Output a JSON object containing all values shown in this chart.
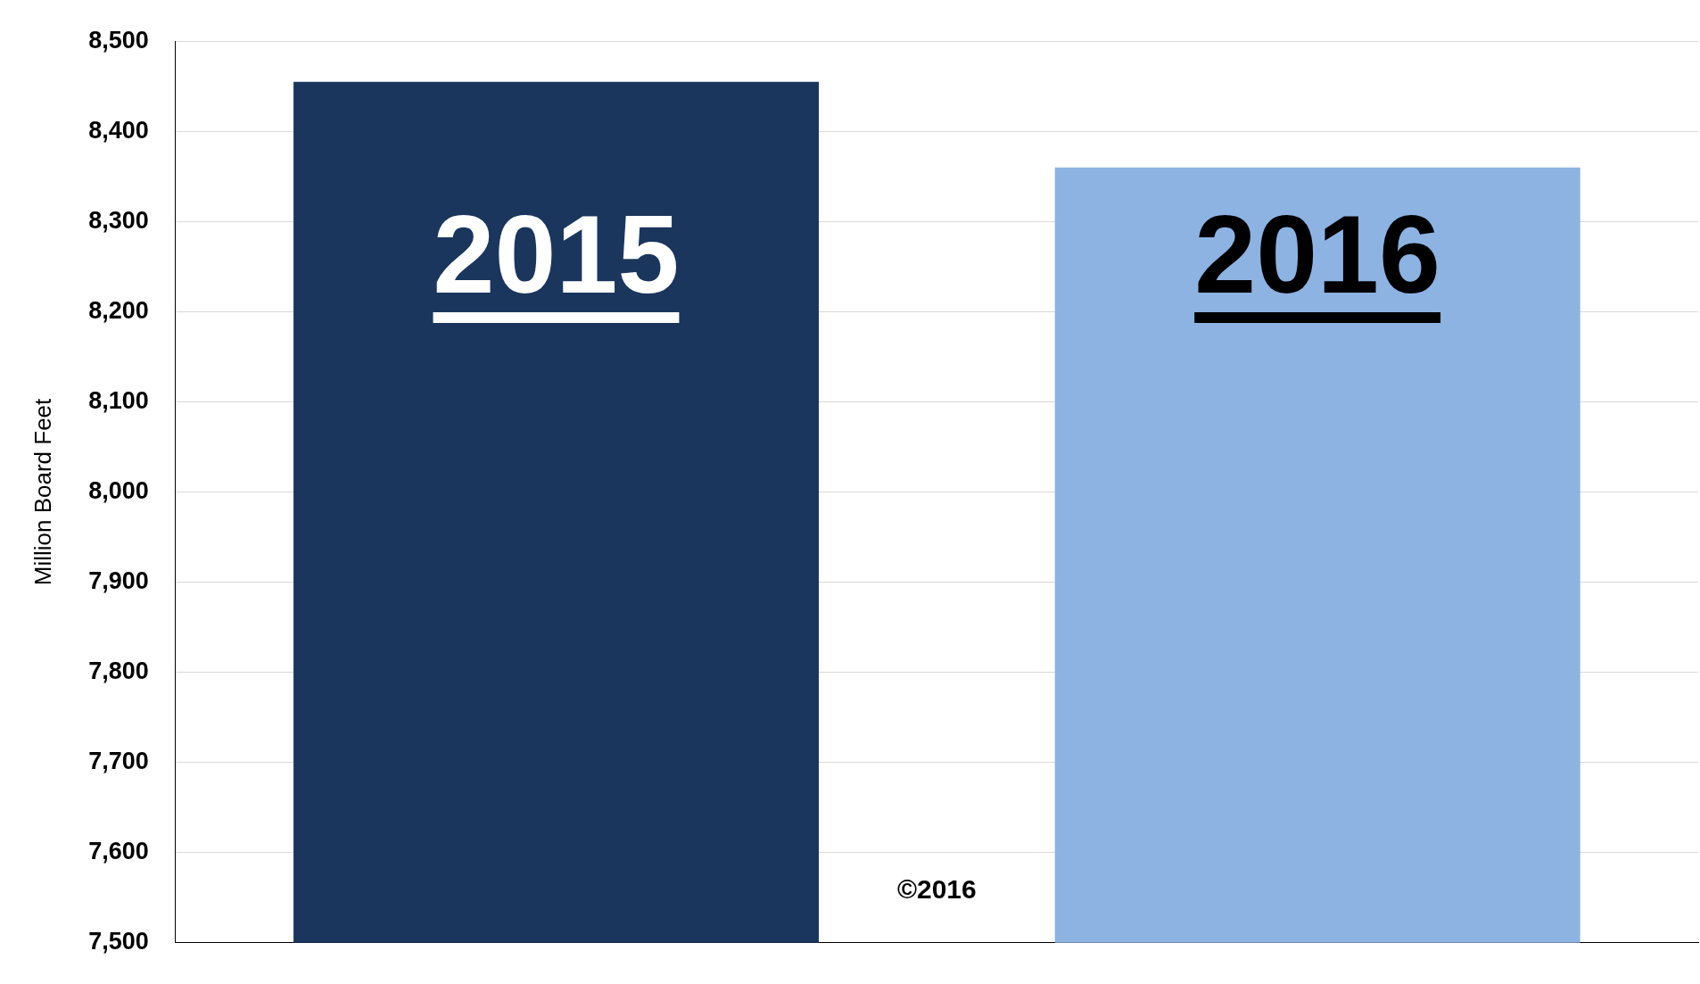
{
  "chart_data": {
    "type": "bar",
    "ylabel": "Million Board Feet",
    "categories": [
      "2015",
      "2016"
    ],
    "values": [
      8455,
      8360
    ],
    "colors": [
      "#1a365d",
      "#8db3e2"
    ],
    "ylim": [
      7500,
      8500
    ],
    "yticks": [
      {
        "value": 7500,
        "label": "7,500"
      },
      {
        "value": 7600,
        "label": "7,600"
      },
      {
        "value": 7700,
        "label": "7,700"
      },
      {
        "value": 7800,
        "label": "7,800"
      },
      {
        "value": 7900,
        "label": "7,900"
      },
      {
        "value": 8000,
        "label": "8,000"
      },
      {
        "value": 8100,
        "label": "8,100"
      },
      {
        "value": 8200,
        "label": "8,200"
      },
      {
        "value": 8300,
        "label": "8,300"
      },
      {
        "value": 8400,
        "label": "8,400"
      },
      {
        "value": 8500,
        "label": "8,500"
      }
    ],
    "grid": "y",
    "legend": false,
    "annotations": [
      "©2016"
    ]
  }
}
